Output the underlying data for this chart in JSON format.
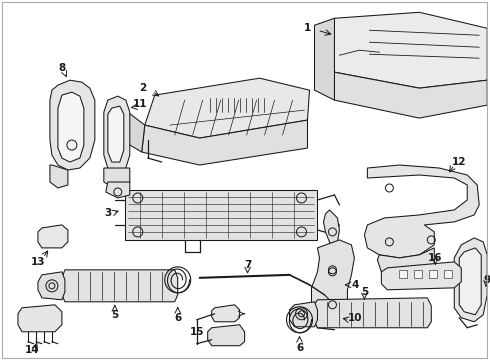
{
  "bg": "#ffffff",
  "lc": "#1a1a1a",
  "lw": 0.9,
  "fw": 4.9,
  "fh": 3.6,
  "dpi": 100,
  "border_color": "#cccccc"
}
